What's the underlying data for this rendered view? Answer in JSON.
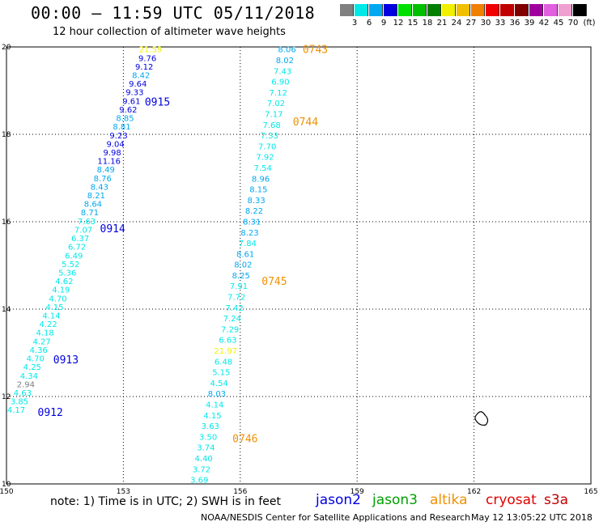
{
  "header": {
    "title": "00:00 – 11:59 UTC 05/11/2018",
    "subtitle": "12 hour collection of altimeter wave heights"
  },
  "colorbar": {
    "unit_label": "(ft)",
    "bins": [
      {
        "label": "3",
        "color": "#808080"
      },
      {
        "label": "6",
        "color": "#00e8e8"
      },
      {
        "label": "9",
        "color": "#00a8f0"
      },
      {
        "label": "12",
        "color": "#0000e0"
      },
      {
        "label": "15",
        "color": "#00e000"
      },
      {
        "label": "18",
        "color": "#00c000"
      },
      {
        "label": "21",
        "color": "#008000"
      },
      {
        "label": "24",
        "color": "#f0f000"
      },
      {
        "label": "27",
        "color": "#f0c000"
      },
      {
        "label": "30",
        "color": "#f08000"
      },
      {
        "label": "33",
        "color": "#f00000"
      },
      {
        "label": "36",
        "color": "#c00000"
      },
      {
        "label": "39",
        "color": "#800000"
      },
      {
        "label": "42",
        "color": "#a000a0"
      },
      {
        "label": "45",
        "color": "#e060e0"
      },
      {
        "label": "70",
        "color": "#f0a0d0"
      },
      {
        "label": "",
        "color": "#000000"
      }
    ]
  },
  "map": {
    "lon_range": [
      150,
      165
    ],
    "lat_range": [
      10,
      20
    ],
    "lon_ticks": [
      "150",
      "153",
      "156",
      "159",
      "162",
      "165"
    ],
    "lat_ticks": [
      "10",
      "12",
      "14",
      "16",
      "18",
      "20"
    ]
  },
  "chart_data": {
    "type": "scatter",
    "tracks": [
      {
        "satellite": "jason2",
        "color": "#0000e0",
        "pass_labels": [
          {
            "text": "0912",
            "lon": 150.8,
            "lat": 11.65
          },
          {
            "text": "0913",
            "lon": 151.2,
            "lat": 12.85
          },
          {
            "text": "0914",
            "lon": 152.4,
            "lat": 15.85
          },
          {
            "text": "0915",
            "lon": 153.55,
            "lat": 18.75
          }
        ],
        "start": {
          "lon": 150.25,
          "lat": 11.7
        },
        "end": {
          "lon": 153.7,
          "lat": 19.95
        },
        "points": [
          {
            "v": "4.17",
            "c": "#00e8e8"
          },
          {
            "v": "3.85",
            "c": "#00e8e8"
          },
          {
            "v": "4.63",
            "c": "#00e8e8"
          },
          {
            "v": "2.94",
            "c": "#808080"
          },
          {
            "v": "4.34",
            "c": "#00e8e8"
          },
          {
            "v": "4.25",
            "c": "#00e8e8"
          },
          {
            "v": "4.70",
            "c": "#00e8e8"
          },
          {
            "v": "4.36",
            "c": "#00e8e8"
          },
          {
            "v": "4.27",
            "c": "#00e8e8"
          },
          {
            "v": "4.18",
            "c": "#00e8e8"
          },
          {
            "v": "4.22",
            "c": "#00e8e8"
          },
          {
            "v": "4.14",
            "c": "#00e8e8"
          },
          {
            "v": "4.15",
            "c": "#00e8e8"
          },
          {
            "v": "4.70",
            "c": "#00e8e8"
          },
          {
            "v": "4.19",
            "c": "#00e8e8"
          },
          {
            "v": "4.62",
            "c": "#00e8e8"
          },
          {
            "v": "5.36",
            "c": "#00e8e8"
          },
          {
            "v": "5.52",
            "c": "#00e8e8"
          },
          {
            "v": "6.49",
            "c": "#00e8e8"
          },
          {
            "v": "6.72",
            "c": "#00e8e8"
          },
          {
            "v": "6.37",
            "c": "#00e8e8"
          },
          {
            "v": "7.07",
            "c": "#00e8e8"
          },
          {
            "v": "7.63",
            "c": "#00e8e8"
          },
          {
            "v": "8.71",
            "c": "#00a8f0"
          },
          {
            "v": "8.64",
            "c": "#00a8f0"
          },
          {
            "v": "8.21",
            "c": "#00a8f0"
          },
          {
            "v": "8.43",
            "c": "#00a8f0"
          },
          {
            "v": "8.76",
            "c": "#00a8f0"
          },
          {
            "v": "8.49",
            "c": "#00a8f0"
          },
          {
            "v": "11.16",
            "c": "#0000e0"
          },
          {
            "v": "9.98",
            "c": "#0000e0"
          },
          {
            "v": "9.04",
            "c": "#0000e0"
          },
          {
            "v": "9.23",
            "c": "#0000e0"
          },
          {
            "v": "8.81",
            "c": "#00a8f0"
          },
          {
            "v": "8.85",
            "c": "#00a8f0"
          },
          {
            "v": "9.62",
            "c": "#0000e0"
          },
          {
            "v": "9.61",
            "c": "#0000e0"
          },
          {
            "v": "9.33",
            "c": "#0000e0"
          },
          {
            "v": "9.64",
            "c": "#0000e0"
          },
          {
            "v": "8.42",
            "c": "#00a8f0"
          },
          {
            "v": "9.12",
            "c": "#0000e0"
          },
          {
            "v": "9.76",
            "c": "#0000e0"
          },
          {
            "v": "21.59",
            "c": "#f0f000"
          }
        ]
      },
      {
        "satellite": "altika",
        "color": "#f09000",
        "pass_labels": [
          {
            "text": "0743",
            "lon": 157.6,
            "lat": 19.95
          },
          {
            "text": "0744",
            "lon": 157.35,
            "lat": 18.3
          },
          {
            "text": "0745",
            "lon": 156.55,
            "lat": 14.65
          },
          {
            "text": "0746",
            "lon": 155.8,
            "lat": 11.05
          }
        ],
        "start": {
          "lon": 157.2,
          "lat": 19.95
        },
        "end": {
          "lon": 154.95,
          "lat": 10.1
        },
        "points": [
          {
            "v": "8.06",
            "c": "#00a8f0"
          },
          {
            "v": "8.02",
            "c": "#00a8f0"
          },
          {
            "v": "7.43",
            "c": "#00e8e8"
          },
          {
            "v": "6.90",
            "c": "#00e8e8"
          },
          {
            "v": "7.12",
            "c": "#00e8e8"
          },
          {
            "v": "7.02",
            "c": "#00e8e8"
          },
          {
            "v": "7.17",
            "c": "#00e8e8"
          },
          {
            "v": "7.68",
            "c": "#00e8e8"
          },
          {
            "v": "7.33",
            "c": "#00e8e8"
          },
          {
            "v": "7.70",
            "c": "#00e8e8"
          },
          {
            "v": "7.92",
            "c": "#00e8e8"
          },
          {
            "v": "7.54",
            "c": "#00e8e8"
          },
          {
            "v": "8.96",
            "c": "#00a8f0"
          },
          {
            "v": "8.15",
            "c": "#00a8f0"
          },
          {
            "v": "8.33",
            "c": "#00a8f0"
          },
          {
            "v": "8.22",
            "c": "#00a8f0"
          },
          {
            "v": "8.31",
            "c": "#00a8f0"
          },
          {
            "v": "8.23",
            "c": "#00a8f0"
          },
          {
            "v": "7.84",
            "c": "#00e8e8"
          },
          {
            "v": "8.61",
            "c": "#00a8f0"
          },
          {
            "v": "8.02",
            "c": "#00a8f0"
          },
          {
            "v": "8.25",
            "c": "#00a8f0"
          },
          {
            "v": "7.91",
            "c": "#00e8e8"
          },
          {
            "v": "7.72",
            "c": "#00e8e8"
          },
          {
            "v": "7.42",
            "c": "#00e8e8"
          },
          {
            "v": "7.24",
            "c": "#00e8e8"
          },
          {
            "v": "7.29",
            "c": "#00e8e8"
          },
          {
            "v": "6.63",
            "c": "#00e8e8"
          },
          {
            "v": "21.97",
            "c": "#f0f000"
          },
          {
            "v": "6.48",
            "c": "#00e8e8"
          },
          {
            "v": "5.15",
            "c": "#00e8e8"
          },
          {
            "v": "4.54",
            "c": "#00e8e8"
          },
          {
            "v": "8.03",
            "c": "#00a8f0"
          },
          {
            "v": "4.14",
            "c": "#00e8e8"
          },
          {
            "v": "4.15",
            "c": "#00e8e8"
          },
          {
            "v": "3.63",
            "c": "#00e8e8"
          },
          {
            "v": "3.50",
            "c": "#00e8e8"
          },
          {
            "v": "3.74",
            "c": "#00e8e8"
          },
          {
            "v": "4.40",
            "c": "#00e8e8"
          },
          {
            "v": "3.72",
            "c": "#00e8e8"
          },
          {
            "v": "3.69",
            "c": "#00e8e8"
          }
        ]
      }
    ],
    "island": {
      "lon": 162.2,
      "lat": 11.5
    }
  },
  "footer": {
    "note": "note: 1) Time is in UTC; 2) SWH is in feet",
    "satellites": [
      {
        "name": "jason2",
        "color": "#0000e0"
      },
      {
        "name": "jason3",
        "color": "#00a000"
      },
      {
        "name": "altika",
        "color": "#f09000"
      },
      {
        "name": "cryosat",
        "color": "#e00000"
      },
      {
        "name": "s3a",
        "color": "#c00000"
      }
    ],
    "credit": "NOAA/NESDIS Center for Satellite Applications and Research",
    "timestamp": "May 12 13:05:22 UTC 2018"
  }
}
